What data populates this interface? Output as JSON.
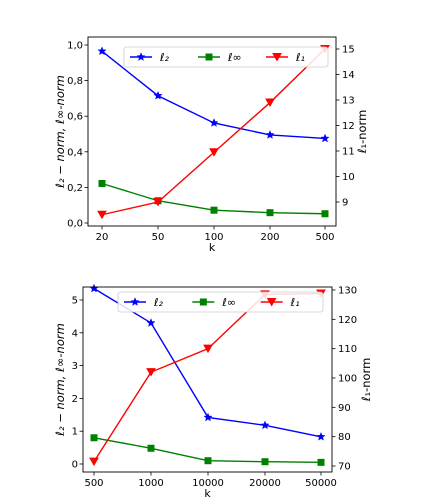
{
  "chart_data": [
    {
      "type": "line",
      "categories": [
        "20",
        "50",
        "100",
        "200",
        "500"
      ],
      "xlabel": "k",
      "ylabel_left": "ℓ₂ − norm, ℓ∞-norm",
      "ylabel_right": "ℓ₁-norm",
      "ylim_left": [
        0.0,
        1.0
      ],
      "ylim_right": [
        8.0,
        15.0
      ],
      "yticks_left": [
        "0,0",
        "0,2",
        "0,4",
        "0,6",
        "0,8",
        "1,0"
      ],
      "yticks_right": [
        "9",
        "10",
        "11",
        "12",
        "13",
        "14",
        "15"
      ],
      "legend_position": "top",
      "series": [
        {
          "name": "ℓ₂",
          "axis": "left",
          "color": "#0000ff",
          "marker": "star",
          "values": [
            0.965,
            0.715,
            0.562,
            0.495,
            0.475
          ]
        },
        {
          "name": "ℓ∞",
          "axis": "left",
          "color": "#008000",
          "marker": "square",
          "values": [
            0.222,
            0.125,
            0.072,
            0.058,
            0.052
          ]
        },
        {
          "name": "ℓ₁",
          "axis": "right",
          "color": "#ff0000",
          "marker": "triangle-down",
          "values": [
            8.5,
            9.0,
            10.95,
            12.9,
            15.0
          ]
        }
      ]
    },
    {
      "type": "line",
      "categories": [
        "500",
        "1000",
        "10000",
        "20000",
        "50000"
      ],
      "xlabel": "k",
      "ylabel_left": "ℓ₂ − norm, ℓ∞-norm",
      "ylabel_right": "ℓ₁-norm",
      "ylim_left": [
        0.0,
        5.5
      ],
      "ylim_right": [
        70,
        130
      ],
      "yticks_left": [
        "0",
        "1",
        "2",
        "3",
        "4",
        "5"
      ],
      "yticks_right": [
        "70",
        "80",
        "90",
        "100",
        "110",
        "120",
        "130"
      ],
      "legend_position": "top",
      "series": [
        {
          "name": "ℓ₂",
          "axis": "left",
          "color": "#0000ff",
          "marker": "star",
          "values": [
            5.35,
            4.3,
            1.42,
            1.18,
            0.83
          ]
        },
        {
          "name": "ℓ∞",
          "axis": "left",
          "color": "#008000",
          "marker": "square",
          "values": [
            0.8,
            0.48,
            0.1,
            0.07,
            0.05
          ]
        },
        {
          "name": "ℓ₁",
          "axis": "right",
          "color": "#ff0000",
          "marker": "triangle-down",
          "values": [
            71.5,
            102,
            110,
            128.5,
            128.8
          ]
        }
      ]
    }
  ]
}
